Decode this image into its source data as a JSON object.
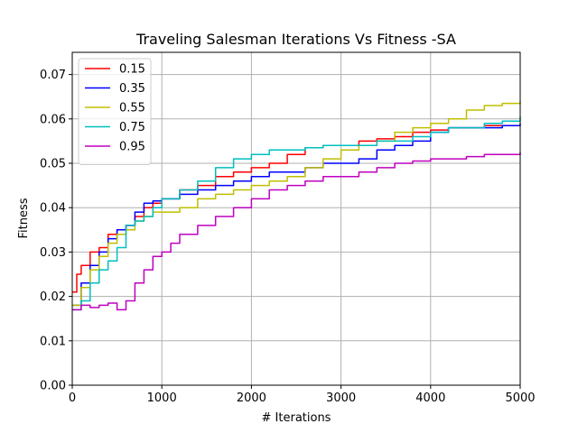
{
  "chart_data": {
    "type": "line",
    "title": "Traveling Salesman Iterations Vs Fitness -SA",
    "xlabel": "# Iterations",
    "ylabel": "Fitness",
    "xlim": [
      0,
      5000
    ],
    "ylim": [
      0.0,
      0.075
    ],
    "xticks": [
      "0",
      "1000",
      "2000",
      "3000",
      "4000",
      "5000"
    ],
    "yticks": [
      "0.00",
      "0.01",
      "0.02",
      "0.03",
      "0.04",
      "0.05",
      "0.06",
      "0.07"
    ],
    "grid": true,
    "legend_position": "top-left",
    "series": [
      {
        "name": "0.15",
        "color": "#ff0000",
        "x": [
          0,
          50,
          100,
          200,
          300,
          400,
          500,
          600,
          700,
          800,
          900,
          1000,
          1200,
          1400,
          1600,
          1800,
          2000,
          2200,
          2400,
          2600,
          2800,
          3000,
          3200,
          3400,
          3600,
          3800,
          4000,
          4200,
          4400,
          4600,
          4800,
          5000
        ],
        "y": [
          0.021,
          0.025,
          0.027,
          0.03,
          0.031,
          0.034,
          0.035,
          0.036,
          0.038,
          0.04,
          0.041,
          0.042,
          0.044,
          0.045,
          0.047,
          0.048,
          0.049,
          0.05,
          0.052,
          0.0535,
          0.054,
          0.054,
          0.055,
          0.0555,
          0.056,
          0.057,
          0.0575,
          0.058,
          0.058,
          0.0585,
          0.0585,
          0.0585
        ]
      },
      {
        "name": "0.35",
        "color": "#0000ff",
        "x": [
          0,
          100,
          200,
          300,
          400,
          500,
          600,
          700,
          800,
          900,
          1000,
          1200,
          1400,
          1600,
          1800,
          2000,
          2200,
          2400,
          2600,
          2800,
          3000,
          3200,
          3400,
          3600,
          3800,
          4000,
          4200,
          4400,
          4600,
          4800,
          5000
        ],
        "y": [
          0.018,
          0.023,
          0.027,
          0.03,
          0.033,
          0.035,
          0.036,
          0.039,
          0.041,
          0.0415,
          0.042,
          0.043,
          0.044,
          0.045,
          0.046,
          0.047,
          0.048,
          0.048,
          0.049,
          0.05,
          0.05,
          0.051,
          0.053,
          0.054,
          0.055,
          0.057,
          0.058,
          0.058,
          0.058,
          0.0585,
          0.059
        ]
      },
      {
        "name": "0.55",
        "color": "#bfbf00",
        "x": [
          0,
          100,
          200,
          300,
          400,
          500,
          600,
          700,
          800,
          900,
          1000,
          1200,
          1400,
          1600,
          1800,
          2000,
          2200,
          2400,
          2600,
          2800,
          3000,
          3200,
          3400,
          3600,
          3800,
          4000,
          4200,
          4400,
          4600,
          4800,
          5000
        ],
        "y": [
          0.018,
          0.022,
          0.026,
          0.029,
          0.032,
          0.034,
          0.035,
          0.037,
          0.038,
          0.039,
          0.039,
          0.04,
          0.042,
          0.043,
          0.044,
          0.045,
          0.046,
          0.047,
          0.049,
          0.051,
          0.053,
          0.054,
          0.055,
          0.057,
          0.058,
          0.059,
          0.06,
          0.062,
          0.063,
          0.0635,
          0.064
        ]
      },
      {
        "name": "0.75",
        "color": "#00bfbf",
        "x": [
          0,
          100,
          200,
          300,
          400,
          500,
          600,
          700,
          800,
          900,
          1000,
          1200,
          1400,
          1600,
          1800,
          2000,
          2200,
          2400,
          2600,
          2800,
          3000,
          3200,
          3400,
          3600,
          3800,
          4000,
          4200,
          4400,
          4600,
          4800,
          5000
        ],
        "y": [
          0.017,
          0.019,
          0.023,
          0.026,
          0.028,
          0.031,
          0.036,
          0.037,
          0.038,
          0.04,
          0.042,
          0.044,
          0.046,
          0.049,
          0.051,
          0.052,
          0.053,
          0.053,
          0.0535,
          0.054,
          0.054,
          0.054,
          0.055,
          0.055,
          0.056,
          0.057,
          0.058,
          0.058,
          0.059,
          0.0595,
          0.0605
        ]
      },
      {
        "name": "0.95",
        "color": "#bf00bf",
        "x": [
          0,
          100,
          200,
          300,
          400,
          500,
          600,
          700,
          800,
          900,
          1000,
          1100,
          1200,
          1400,
          1600,
          1800,
          2000,
          2200,
          2400,
          2600,
          2800,
          3000,
          3200,
          3400,
          3600,
          3800,
          4000,
          4200,
          4400,
          4600,
          4800,
          5000
        ],
        "y": [
          0.017,
          0.018,
          0.0175,
          0.018,
          0.0185,
          0.017,
          0.019,
          0.023,
          0.026,
          0.029,
          0.03,
          0.032,
          0.034,
          0.036,
          0.038,
          0.04,
          0.042,
          0.044,
          0.045,
          0.046,
          0.047,
          0.047,
          0.048,
          0.049,
          0.05,
          0.0505,
          0.051,
          0.051,
          0.0515,
          0.052,
          0.052,
          0.0525
        ]
      }
    ]
  }
}
